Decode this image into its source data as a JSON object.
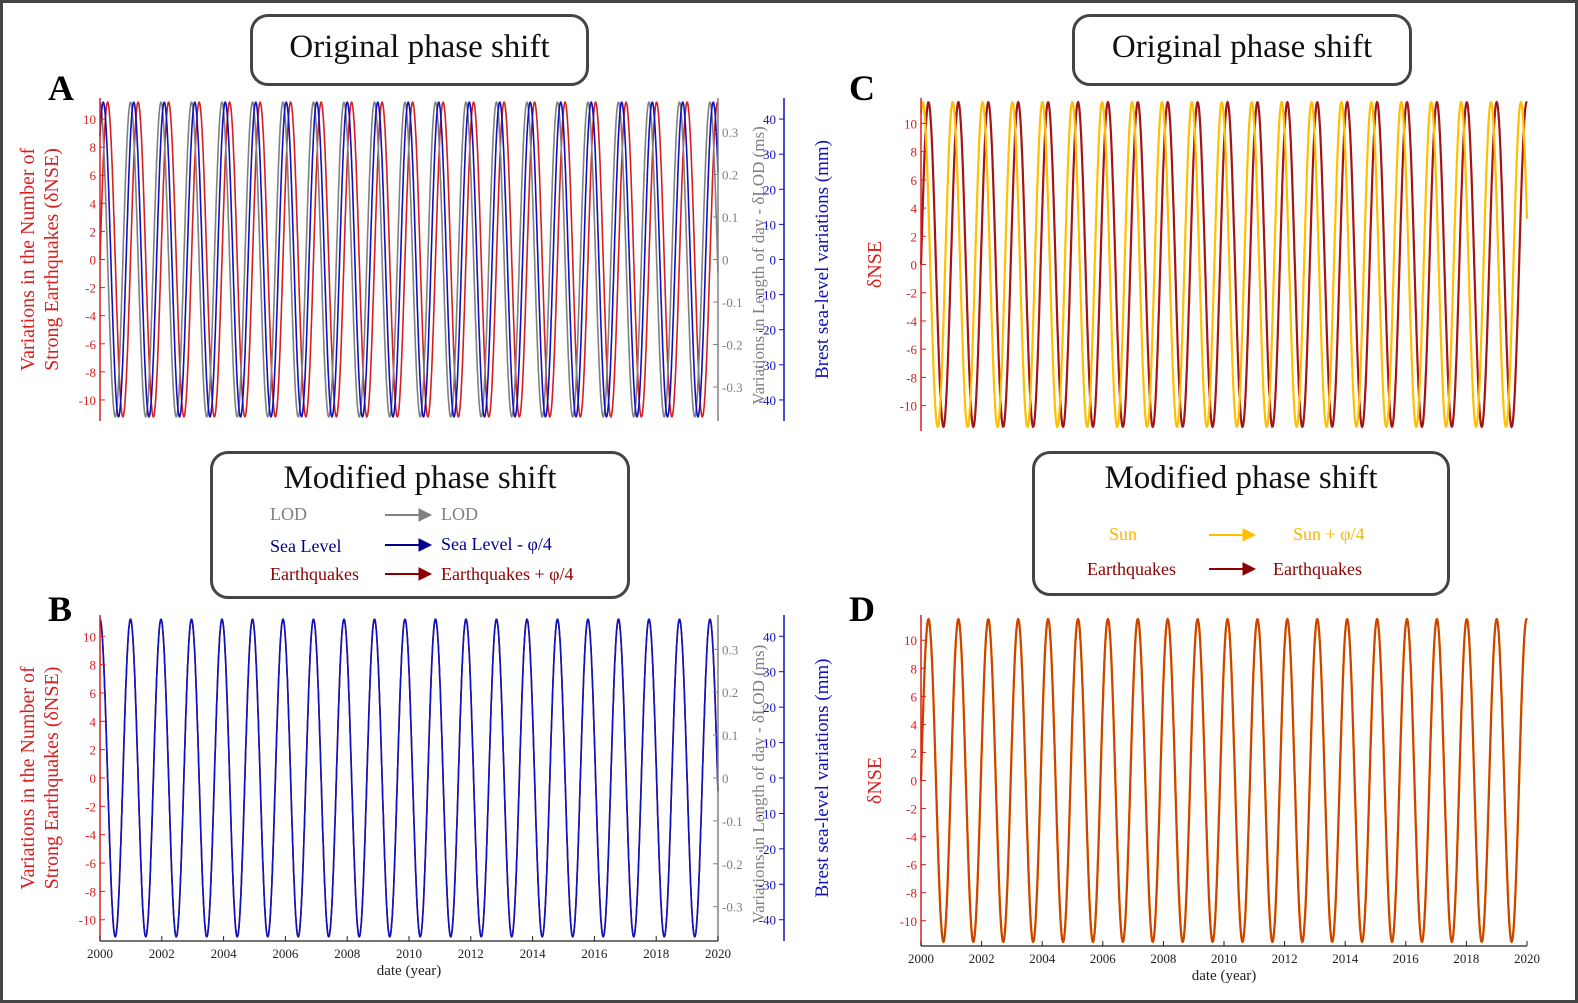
{
  "panels": {
    "A": {
      "letter": "A"
    },
    "B": {
      "letter": "B"
    },
    "C": {
      "letter": "C"
    },
    "D": {
      "letter": "D"
    }
  },
  "boxes": {
    "left_top_title": "Original phase shift",
    "right_top_title": "Original phase shift",
    "left_mid_title": "Modified phase shift",
    "right_mid_title": "Modified phase shift"
  },
  "legend_left": {
    "rows": [
      {
        "from": "LOD",
        "to": "LOD",
        "color": "#808080"
      },
      {
        "from": "Sea Level",
        "to": "Sea Level - φ/4",
        "color": "#00008b"
      },
      {
        "from": "Earthquakes",
        "to": "Earthquakes + φ/4",
        "color": "#8b0000"
      }
    ]
  },
  "legend_right": {
    "rows": [
      {
        "from": "Sun",
        "to": "Sun + φ/4",
        "color": "#ffc000"
      },
      {
        "from": "Earthquakes",
        "to": "Earthquakes",
        "color": "#8b0000"
      }
    ]
  },
  "colors": {
    "nse": "#d62020",
    "nse_dark": "#a31515",
    "lod": "#808080",
    "sea": "#1010c0",
    "sun": "#ffc000",
    "combined": "#cc4400"
  },
  "chart_data": [
    {
      "id": "A",
      "type": "line",
      "title": "",
      "xlim": [
        2000,
        2020
      ],
      "ylabel": [
        "Variations in the Number of",
        "Strong Earthquakes (δNSE)"
      ],
      "ylim": [
        -11.5,
        11.5
      ],
      "yticks": [
        -10,
        -8,
        -6,
        -4,
        -2,
        0,
        2,
        4,
        6,
        8,
        10
      ],
      "y2label": "Variations in Length of day - δLOD (ms)",
      "y2lim": [
        -0.38,
        0.38
      ],
      "y2ticks": [
        -0.3,
        -0.2,
        -0.1,
        0,
        0.1,
        0.2,
        0.3
      ],
      "y3label": "Brest sea-level variations (mm)",
      "y3lim": [
        -46,
        46
      ],
      "y3ticks": [
        -40,
        -30,
        -20,
        -10,
        0,
        10,
        20,
        30,
        40
      ],
      "series": [
        {
          "name": "δNSE",
          "period_years": 0.987,
          "amplitude": 11.2,
          "phase": 0.0,
          "color_key": "nse"
        },
        {
          "name": "δLOD",
          "period_years": 0.987,
          "amplitude": 11.2,
          "phase": 1.57,
          "color_key": "lod"
        },
        {
          "name": "Sea level",
          "period_years": 0.987,
          "amplitude": 11.2,
          "phase": 0.9,
          "color_key": "sea"
        }
      ]
    },
    {
      "id": "B",
      "type": "line",
      "xlabel": "date (year)",
      "xlim": [
        2000,
        2020
      ],
      "xticks": [
        2000,
        2002,
        2004,
        2006,
        2008,
        2010,
        2012,
        2014,
        2016,
        2018,
        2020
      ],
      "ylabel": [
        "Variations in the Number of",
        "Strong Earthquakes (δNSE)"
      ],
      "ylim": [
        -11.5,
        11.5
      ],
      "yticks": [
        -10,
        -8,
        -6,
        -4,
        -2,
        0,
        2,
        4,
        6,
        8,
        10
      ],
      "y2label": "Variations in Length of day - δLOD (ms)",
      "y2lim": [
        -0.38,
        0.38
      ],
      "y2ticks": [
        -0.3,
        -0.2,
        -0.1,
        0,
        0.1,
        0.2,
        0.3
      ],
      "y3label": "Brest sea-level variations (mm)",
      "y3lim": [
        -46,
        46
      ],
      "y3ticks": [
        -40,
        -30,
        -20,
        -10,
        0,
        10,
        20,
        30,
        40
      ],
      "series": [
        {
          "name": "δNSE + φ/4",
          "period_years": 0.987,
          "amplitude": 11.2,
          "phase": 1.57,
          "color_key": "nse"
        },
        {
          "name": "δLOD",
          "period_years": 0.987,
          "amplitude": 11.2,
          "phase": 1.57,
          "color_key": "lod"
        },
        {
          "name": "Sea level - φ/4",
          "period_years": 0.987,
          "amplitude": 11.2,
          "phase": 1.57,
          "color_key": "sea"
        }
      ]
    },
    {
      "id": "C",
      "type": "line",
      "xlim": [
        2000,
        2020
      ],
      "ylabel": [
        "δNSE"
      ],
      "ylim": [
        -11.8,
        11.8
      ],
      "yticks": [
        -10,
        -8,
        -6,
        -4,
        -2,
        0,
        2,
        4,
        6,
        8,
        10
      ],
      "series": [
        {
          "name": "δNSE",
          "period_years": 0.987,
          "amplitude": 11.5,
          "phase": 0.0,
          "color_key": "nse_dark"
        },
        {
          "name": "Sun",
          "period_years": 0.987,
          "amplitude": 11.5,
          "phase": 1.2,
          "color_key": "sun"
        }
      ]
    },
    {
      "id": "D",
      "type": "line",
      "xlabel": "date (year)",
      "xlim": [
        2000,
        2020
      ],
      "xticks": [
        2000,
        2002,
        2004,
        2006,
        2008,
        2010,
        2012,
        2014,
        2016,
        2018,
        2020
      ],
      "ylabel": [
        "δNSE"
      ],
      "ylim": [
        -11.8,
        11.8
      ],
      "yticks": [
        -10,
        -8,
        -6,
        -4,
        -2,
        0,
        2,
        4,
        6,
        8,
        10
      ],
      "series": [
        {
          "name": "Sun + φ/4",
          "period_years": 0.987,
          "amplitude": 11.5,
          "phase": 0.0,
          "color_key": "sun"
        },
        {
          "name": "δNSE",
          "period_years": 0.987,
          "amplitude": 11.5,
          "phase": 0.0,
          "color_key": "combined"
        }
      ]
    }
  ]
}
